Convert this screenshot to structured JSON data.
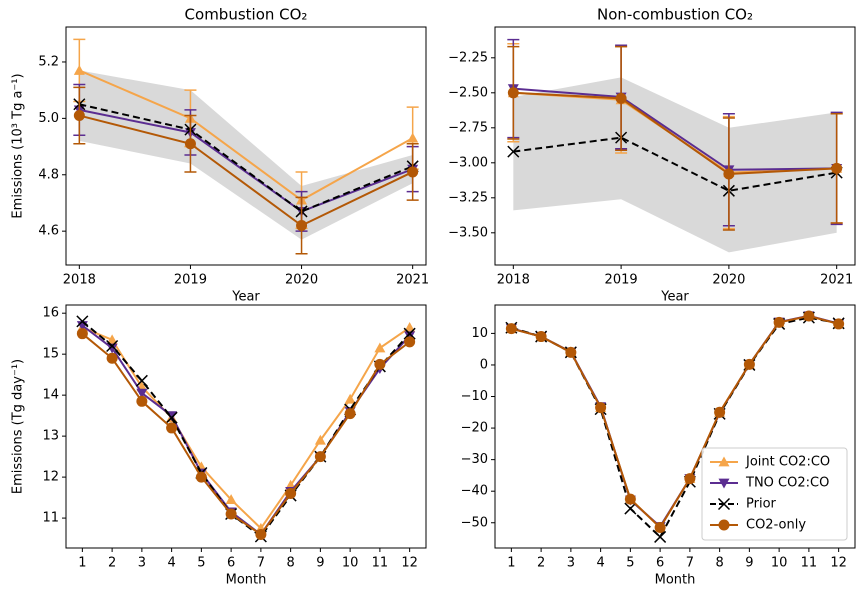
{
  "chart_data": [
    {
      "type": "line",
      "title": "Combustion CO₂",
      "x_label": "Year",
      "y_label": "Emissions (10³ Tg a⁻¹)",
      "x": [
        2018,
        2019,
        2020,
        2021
      ],
      "xlim": [
        2017.88,
        2021.12
      ],
      "xticks": [
        2018,
        2019,
        2020,
        2021
      ],
      "ylim": [
        4.48,
        5.324
      ],
      "yticks": [
        4.6,
        4.8,
        {
          "value": 5.0,
          "label": "5.0"
        },
        5.2
      ],
      "band": {
        "color": "#d9d9d9",
        "lower": [
          4.92,
          4.84,
          4.57,
          4.77
        ],
        "upper": [
          5.17,
          5.1,
          4.76,
          4.87
        ]
      },
      "series": [
        {
          "color": "#f5a54a",
          "marker": "triangle-up",
          "linestyle": "solid",
          "values": [
            5.17,
            5.0,
            4.71,
            4.93
          ],
          "errors": [
            0.11,
            0.1,
            0.1,
            0.11
          ]
        },
        {
          "color": "#5b2d91",
          "marker": "triangle-down",
          "linestyle": "solid",
          "values": [
            5.03,
            4.95,
            4.67,
            4.82
          ],
          "errors": [
            0.09,
            0.08,
            0.07,
            0.08
          ]
        },
        {
          "color": "#000000",
          "marker": "x",
          "linestyle": "dashed",
          "values": [
            5.05,
            4.96,
            4.67,
            4.83
          ]
        },
        {
          "color": "#b35806",
          "marker": "circle",
          "linestyle": "solid",
          "values": [
            5.01,
            4.91,
            4.62,
            4.81
          ],
          "errors": [
            0.1,
            0.1,
            0.1,
            0.1
          ]
        }
      ]
    },
    {
      "type": "line",
      "title": "Non-combustion CO₂",
      "x_label": "Year",
      "x": [
        2018,
        2019,
        2020,
        2021
      ],
      "xlim": [
        2017.83,
        2021.17
      ],
      "xticks": [
        2018,
        2019,
        2020,
        2021
      ],
      "ylim": [
        -3.73,
        -2.03
      ],
      "yticks": [
        {
          "value": -3.5,
          "label": "−3.50"
        },
        {
          "value": -3.25,
          "label": "−3.25"
        },
        {
          "value": -3.0,
          "label": "−3.00"
        },
        {
          "value": -2.75,
          "label": "−2.75"
        },
        {
          "value": -2.5,
          "label": "−2.50"
        },
        {
          "value": -2.25,
          "label": "−2.25"
        }
      ],
      "band": {
        "color": "#d9d9d9",
        "lower": [
          -3.34,
          -3.26,
          -3.64,
          -3.5
        ],
        "upper": [
          -2.53,
          -2.39,
          -2.75,
          -2.64
        ]
      },
      "series": [
        {
          "color": "#f5a54a",
          "marker": "triangle-up",
          "linestyle": "solid",
          "values": [
            -2.5,
            -2.55,
            -3.07,
            -3.04
          ],
          "errors": [
            0.35,
            0.38,
            0.4,
            0.39
          ]
        },
        {
          "color": "#5b2d91",
          "marker": "triangle-down",
          "linestyle": "solid",
          "values": [
            -2.47,
            -2.53,
            -3.05,
            -3.04
          ],
          "errors": [
            0.35,
            0.37,
            0.4,
            0.4
          ]
        },
        {
          "color": "#000000",
          "marker": "x",
          "linestyle": "dashed",
          "values": [
            -2.92,
            -2.82,
            -3.2,
            -3.07
          ]
        },
        {
          "color": "#b35806",
          "marker": "circle",
          "linestyle": "solid",
          "values": [
            -2.5,
            -2.54,
            -3.08,
            -3.04
          ],
          "errors": [
            0.33,
            0.37,
            0.4,
            0.39
          ]
        }
      ]
    },
    {
      "type": "line",
      "x_label": "Month",
      "y_label": "Emissions (Tg day⁻¹)",
      "x": [
        1,
        2,
        3,
        4,
        5,
        6,
        7,
        8,
        9,
        10,
        11,
        12
      ],
      "xlim": [
        0.45,
        12.55
      ],
      "xticks": [
        1,
        2,
        3,
        4,
        5,
        6,
        7,
        8,
        9,
        10,
        11,
        12
      ],
      "ylim": [
        10.27,
        16.2
      ],
      "yticks": [
        11,
        12,
        13,
        14,
        15,
        16
      ],
      "series": [
        {
          "color": "#f5a54a",
          "marker": "triangle-up",
          "linestyle": "solid",
          "values": [
            15.65,
            15.35,
            14.2,
            13.45,
            12.25,
            11.45,
            10.75,
            11.8,
            12.9,
            13.9,
            15.15,
            15.65
          ]
        },
        {
          "color": "#5b2d91",
          "marker": "triangle-down",
          "linestyle": "solid",
          "values": [
            15.7,
            15.15,
            14.05,
            13.5,
            12.1,
            11.15,
            10.6,
            11.65,
            12.5,
            13.6,
            14.65,
            15.45
          ]
        },
        {
          "color": "#000000",
          "marker": "x",
          "linestyle": "dashed",
          "values": [
            15.8,
            15.2,
            14.35,
            13.45,
            12.1,
            11.1,
            10.55,
            11.55,
            12.5,
            13.65,
            14.7,
            15.5
          ]
        },
        {
          "color": "#b35806",
          "marker": "circle",
          "linestyle": "solid",
          "values": [
            15.5,
            14.9,
            13.85,
            13.2,
            12.0,
            11.1,
            10.6,
            11.6,
            12.5,
            13.55,
            14.75,
            15.3
          ]
        }
      ]
    },
    {
      "type": "line",
      "x_label": "Month",
      "legend": "lower right",
      "x": [
        1,
        2,
        3,
        4,
        5,
        6,
        7,
        8,
        9,
        10,
        11,
        12
      ],
      "xlim": [
        0.45,
        12.55
      ],
      "xticks": [
        1,
        2,
        3,
        4,
        5,
        6,
        7,
        8,
        9,
        10,
        11,
        12
      ],
      "ylim": [
        -58,
        19
      ],
      "yticks": [
        {
          "value": -50,
          "label": "−50"
        },
        {
          "value": -40,
          "label": "−40"
        },
        {
          "value": -30,
          "label": "−30"
        },
        {
          "value": -20,
          "label": "−20"
        },
        {
          "value": -10,
          "label": "−10"
        },
        0,
        10
      ],
      "series": [
        {
          "name": "Joint CO2:CO",
          "color": "#f5a54a",
          "marker": "triangle-up",
          "linestyle": "solid",
          "values": [
            11.5,
            9,
            4.2,
            -13.5,
            -42.5,
            -51.5,
            -36,
            -15,
            0.2,
            13.5,
            15.5,
            13
          ]
        },
        {
          "name": "TNO CO2:CO",
          "color": "#5b2d91",
          "marker": "triangle-down",
          "linestyle": "solid",
          "values": [
            11.6,
            9,
            4.1,
            -13.2,
            -42.8,
            -51.2,
            -36,
            -15.2,
            0.2,
            13.6,
            15.6,
            13.1
          ]
        },
        {
          "name": "Prior",
          "color": "#000000",
          "marker": "x",
          "linestyle": "dashed",
          "values": [
            11.8,
            9,
            4,
            -14,
            -45.5,
            -54.5,
            -37,
            -15.5,
            0,
            13,
            15,
            13.2
          ]
        },
        {
          "name": "CO2-only",
          "color": "#b35806",
          "marker": "circle",
          "linestyle": "solid",
          "values": [
            11.5,
            9,
            4,
            -13.5,
            -42.5,
            -51.5,
            -36,
            -15,
            0.2,
            13.5,
            15.5,
            13
          ]
        }
      ]
    }
  ]
}
